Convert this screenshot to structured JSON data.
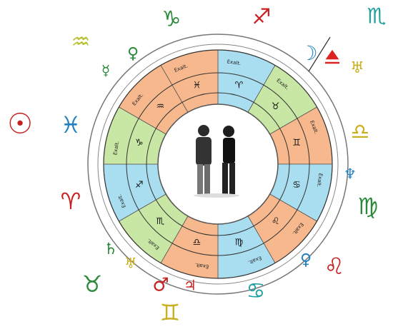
{
  "outer_glyphs": [
    "♑︎",
    "♐︎",
    "♏︎",
    "♒︎",
    "♀︎",
    "☿︎",
    "☉︎",
    "♓︎",
    "♈︎",
    "♄︎",
    "♅︎",
    "♉︎",
    "♂︎",
    "♃︎",
    "♋︎",
    "♊︎",
    "♌︎",
    "♀︎",
    "♍︎",
    "♆︎",
    "♎︎",
    "☽︎",
    "♅︎"
  ],
  "ring_labels": [
    "Exalt.",
    "Exalt.",
    "Exalt.",
    "Exalt.",
    "Exalt.",
    "Exalt.",
    "Exalt.",
    "Exalt.",
    "Exalt.",
    "Exalt.",
    "Exalt.",
    "Exalt."
  ],
  "ring_glyphs": [
    "♑︎",
    "♒︎",
    "♓︎",
    "♈︎",
    "♉︎",
    "♊︎",
    "♋︎",
    "♌︎",
    "♍︎",
    "♎︎",
    "♏︎",
    "♐︎"
  ]
}
